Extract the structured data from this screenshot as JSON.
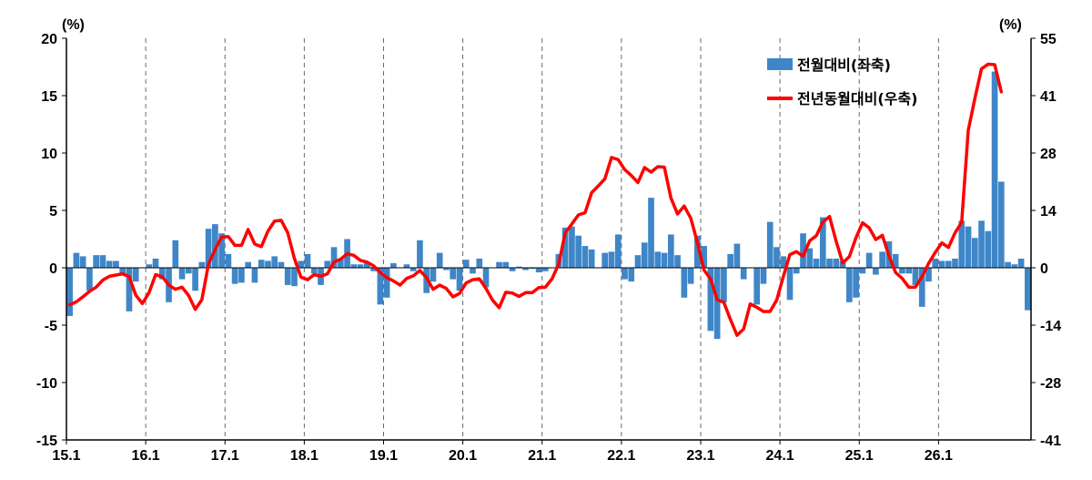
{
  "chart_data": {
    "type": "bar+line",
    "left_unit": "(%)",
    "right_unit": "(%)",
    "x_tick_labels": [
      "15.1",
      "16.1",
      "17.1",
      "18.1",
      "19.1",
      "20.1",
      "21.1",
      "22.1",
      "23.1",
      "24.1",
      "25.1",
      "26.1"
    ],
    "y_left_ticks": [
      "20",
      "15",
      "10",
      "5",
      "0",
      "-5",
      "-10",
      "-15"
    ],
    "y_right_ticks": [
      "55",
      "41",
      "28",
      "14",
      "0",
      "-14",
      "-28",
      "-41"
    ],
    "ylim_left": [
      -15,
      20
    ],
    "ylim_right": [
      -41,
      55
    ],
    "grid": "vertical dashed lines at January of each year",
    "legend_position": "top-right",
    "start_month": "2015-01",
    "series": [
      {
        "name": "전월대비(좌축)",
        "axis": "left",
        "kind": "bar",
        "color": "#3F86C8",
        "values": [
          -4.2,
          1.3,
          1.0,
          -2.0,
          1.1,
          1.1,
          0.6,
          0.6,
          -0.5,
          -3.8,
          -1.2,
          0.0,
          0.3,
          0.8,
          -1.0,
          -3.0,
          2.4,
          -1.0,
          -0.5,
          -2.0,
          0.5,
          3.4,
          3.8,
          3.0,
          1.2,
          -1.4,
          -1.3,
          0.5,
          -1.3,
          0.7,
          0.6,
          1.0,
          0.5,
          -1.5,
          -1.6,
          0.6,
          1.2,
          -0.5,
          -1.5,
          0.6,
          1.8,
          0.8,
          2.5,
          0.3,
          0.3,
          0.4,
          -0.3,
          -3.2,
          -2.6,
          0.4,
          0.0,
          0.3,
          -0.3,
          2.4,
          -2.2,
          -1.2,
          1.3,
          -0.2,
          -1.0,
          -2.0,
          0.7,
          -0.5,
          0.8,
          -1.7,
          0.0,
          0.5,
          0.5,
          -0.3,
          0.1,
          -0.2,
          -0.1,
          -0.4,
          -0.3,
          0.0,
          1.2,
          3.5,
          3.6,
          2.8,
          1.9,
          1.6,
          0.0,
          1.3,
          1.4,
          2.9,
          -1.0,
          -1.2,
          1.1,
          2.2,
          6.1,
          1.4,
          1.3,
          2.9,
          1.1,
          -2.6,
          -1.4,
          2.8,
          1.9,
          -5.5,
          -6.2,
          -3.0,
          1.2,
          2.1,
          -1.0,
          0.0,
          -3.2,
          -1.4,
          4.0,
          1.8,
          1.0,
          -2.8,
          -0.5,
          3.0,
          1.7,
          0.8,
          4.4,
          0.8,
          0.8,
          0.6,
          -3.0,
          -2.6,
          -0.5,
          1.3,
          -0.6,
          1.4,
          2.3,
          1.2,
          -0.5,
          -0.5,
          -1.5,
          -3.4,
          -1.2,
          0.8,
          0.6,
          0.6,
          0.8,
          4.1,
          3.6,
          2.6,
          4.1,
          3.2,
          17.1,
          7.5,
          0.5,
          0.3,
          0.8,
          -3.7
        ]
      },
      {
        "name": "전년동월대비(우축)",
        "axis": "right",
        "kind": "line",
        "color": "#FF0000",
        "values": [
          -8.7,
          -8.0,
          -6.8,
          -5.5,
          -4.5,
          -2.8,
          -1.9,
          -1.6,
          -1.3,
          -2.0,
          -6.4,
          -8.4,
          -5.8,
          -1.5,
          -2.0,
          -4.0,
          -5.0,
          -4.5,
          -6.5,
          -9.8,
          -7.5,
          1.0,
          4.5,
          7.5,
          7.6,
          5.5,
          5.5,
          9.3,
          5.8,
          5.2,
          8.9,
          11.3,
          11.5,
          8.5,
          2.4,
          -2.1,
          -2.7,
          -1.5,
          -1.9,
          -1.3,
          1.5,
          2.2,
          3.5,
          3.1,
          1.9,
          1.5,
          0.6,
          -1.0,
          -2.2,
          -3.0,
          -4.0,
          -2.4,
          -1.8,
          -0.5,
          -2.2,
          -5.0,
          -4.0,
          -4.8,
          -6.8,
          -6.0,
          -3.5,
          -2.7,
          -2.5,
          -4.8,
          -7.6,
          -9.4,
          -5.7,
          -5.9,
          -6.7,
          -5.8,
          -5.8,
          -4.6,
          -4.5,
          -2.5,
          1.0,
          8.5,
          10.6,
          12.8,
          13.3,
          18.1,
          19.7,
          21.4,
          26.5,
          26.0,
          23.6,
          22.2,
          20.5,
          24.1,
          23.0,
          24.3,
          24.2,
          16.8,
          13.0,
          14.9,
          12.0,
          6.2,
          -0.4,
          -2.5,
          -7.5,
          -8.1,
          -12.2,
          -16.0,
          -14.5,
          -8.5,
          -9.3,
          -10.3,
          -10.3,
          -7.6,
          -2.0,
          3.3,
          4.0,
          2.9,
          6.6,
          7.8,
          11.1,
          12.4,
          6.5,
          1.3,
          2.8,
          7.3,
          10.9,
          9.7,
          6.9,
          7.9,
          3.0,
          -1.0,
          -2.4,
          -4.5,
          -4.5,
          -2.0,
          1.2,
          3.8,
          6.1,
          5.0,
          8.5,
          11.0,
          33.0,
          40.6,
          47.7,
          48.8,
          48.7,
          42.2
        ]
      }
    ]
  }
}
